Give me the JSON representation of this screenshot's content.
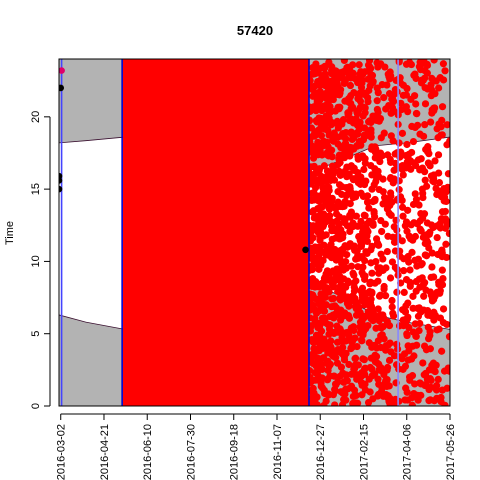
{
  "chart_data": {
    "type": "scatter",
    "title": "57420",
    "xlabel": "",
    "ylabel": "Time",
    "xlim": [
      "2016-02-29",
      "2017-05-26"
    ],
    "ylim": [
      0,
      24
    ],
    "x_ticks": [
      "2016-03-02",
      "2016-04-21",
      "2016-06-10",
      "2016-07-30",
      "2016-09-18",
      "2016-11-07",
      "2016-12-27",
      "2017-02-15",
      "2017-04-06",
      "2017-05-26"
    ],
    "y_ticks": [
      0,
      5,
      10,
      15,
      20
    ],
    "grid": false,
    "night_band": {
      "color": "#b3b3b3",
      "sunrise": [
        {
          "date": "2016-02-29",
          "hour": 6.3
        },
        {
          "date": "2016-03-31",
          "hour": 5.8
        },
        {
          "date": "2016-05-15",
          "hour": 5.3
        },
        {
          "date": "2016-06-21",
          "hour": 5.0
        },
        {
          "date": "2016-09-22",
          "hour": 6.0
        },
        {
          "date": "2016-12-21",
          "hour": 8.4
        },
        {
          "date": "2017-01-20",
          "hour": 7.6
        },
        {
          "date": "2017-03-01",
          "hour": 6.3
        },
        {
          "date": "2017-04-06",
          "hour": 5.8
        },
        {
          "date": "2017-05-26",
          "hour": 5.3
        }
      ],
      "sunset": [
        {
          "date": "2016-02-29",
          "hour": 18.2
        },
        {
          "date": "2016-03-31",
          "hour": 18.35
        },
        {
          "date": "2016-05-15",
          "hour": 18.6
        },
        {
          "date": "2016-06-21",
          "hour": 18.9
        },
        {
          "date": "2016-09-22",
          "hour": 18.0
        },
        {
          "date": "2016-12-21",
          "hour": 16.3
        },
        {
          "date": "2017-01-20",
          "hour": 17.0
        },
        {
          "date": "2017-03-01",
          "hour": 18.0
        },
        {
          "date": "2017-04-06",
          "hour": 18.2
        },
        {
          "date": "2017-05-26",
          "hour": 18.6
        }
      ]
    },
    "red_block": {
      "start": "2016-05-13",
      "end": "2016-12-14",
      "color": "#ff0000"
    },
    "vertical_lines": [
      {
        "date": "2016-03-03",
        "color": "#4444ff"
      },
      {
        "date": "2016-05-12",
        "color": "#0000cc"
      },
      {
        "date": "2016-12-14",
        "color": "#0000cc"
      },
      {
        "date": "2017-03-27",
        "color": "#8888ff"
      }
    ],
    "series": [
      {
        "color": "#000000",
        "points": [
          {
            "x": "2016-02-29",
            "y": 15.0
          },
          {
            "x": "2016-02-29",
            "y": 15.6
          },
          {
            "x": "2016-02-29",
            "y": 15.9
          },
          {
            "x": "2016-03-02",
            "y": 22.0
          },
          {
            "x": "2016-12-10",
            "y": 10.8
          }
        ]
      },
      {
        "color": "#e0006a",
        "points": [
          {
            "x": "2016-03-03",
            "y": 23.2
          }
        ]
      },
      {
        "color": "#ff0000",
        "scatter_region": {
          "start": "2016-12-14",
          "end": "2017-05-26"
        },
        "density_profile": [
          {
            "date": "2016-12-14",
            "density": 1.0
          },
          {
            "date": "2017-01-10",
            "density": 0.95
          },
          {
            "date": "2017-02-05",
            "density": 0.75
          },
          {
            "date": "2017-03-01",
            "density": 0.55
          },
          {
            "date": "2017-04-01",
            "density": 0.4
          },
          {
            "date": "2017-05-26",
            "density": 0.35
          }
        ]
      }
    ]
  }
}
